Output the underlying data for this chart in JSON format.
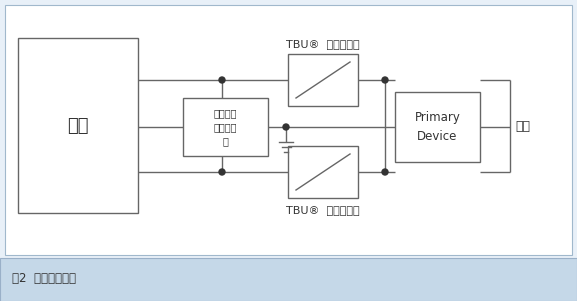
{
  "bg_color": "#e8f0f8",
  "diagram_bg": "#ffffff",
  "box_edge_color": "#666666",
  "line_color": "#666666",
  "dot_color": "#333333",
  "caption_bg": "#c5d8e8",
  "caption_border": "#9ab0c8",
  "title_text": "图2  三级防护方案",
  "label_shebei": "设备",
  "label_jiekou": "接口",
  "label_tbu_top": "TBU®  高速保护器",
  "label_tbu_bot": "TBU®  高速保护器",
  "label_tvs": "电压瞬变\n抑制二极\n管",
  "label_primary": "Primary\nDevice",
  "figsize": [
    5.77,
    3.01
  ],
  "dpi": 100
}
